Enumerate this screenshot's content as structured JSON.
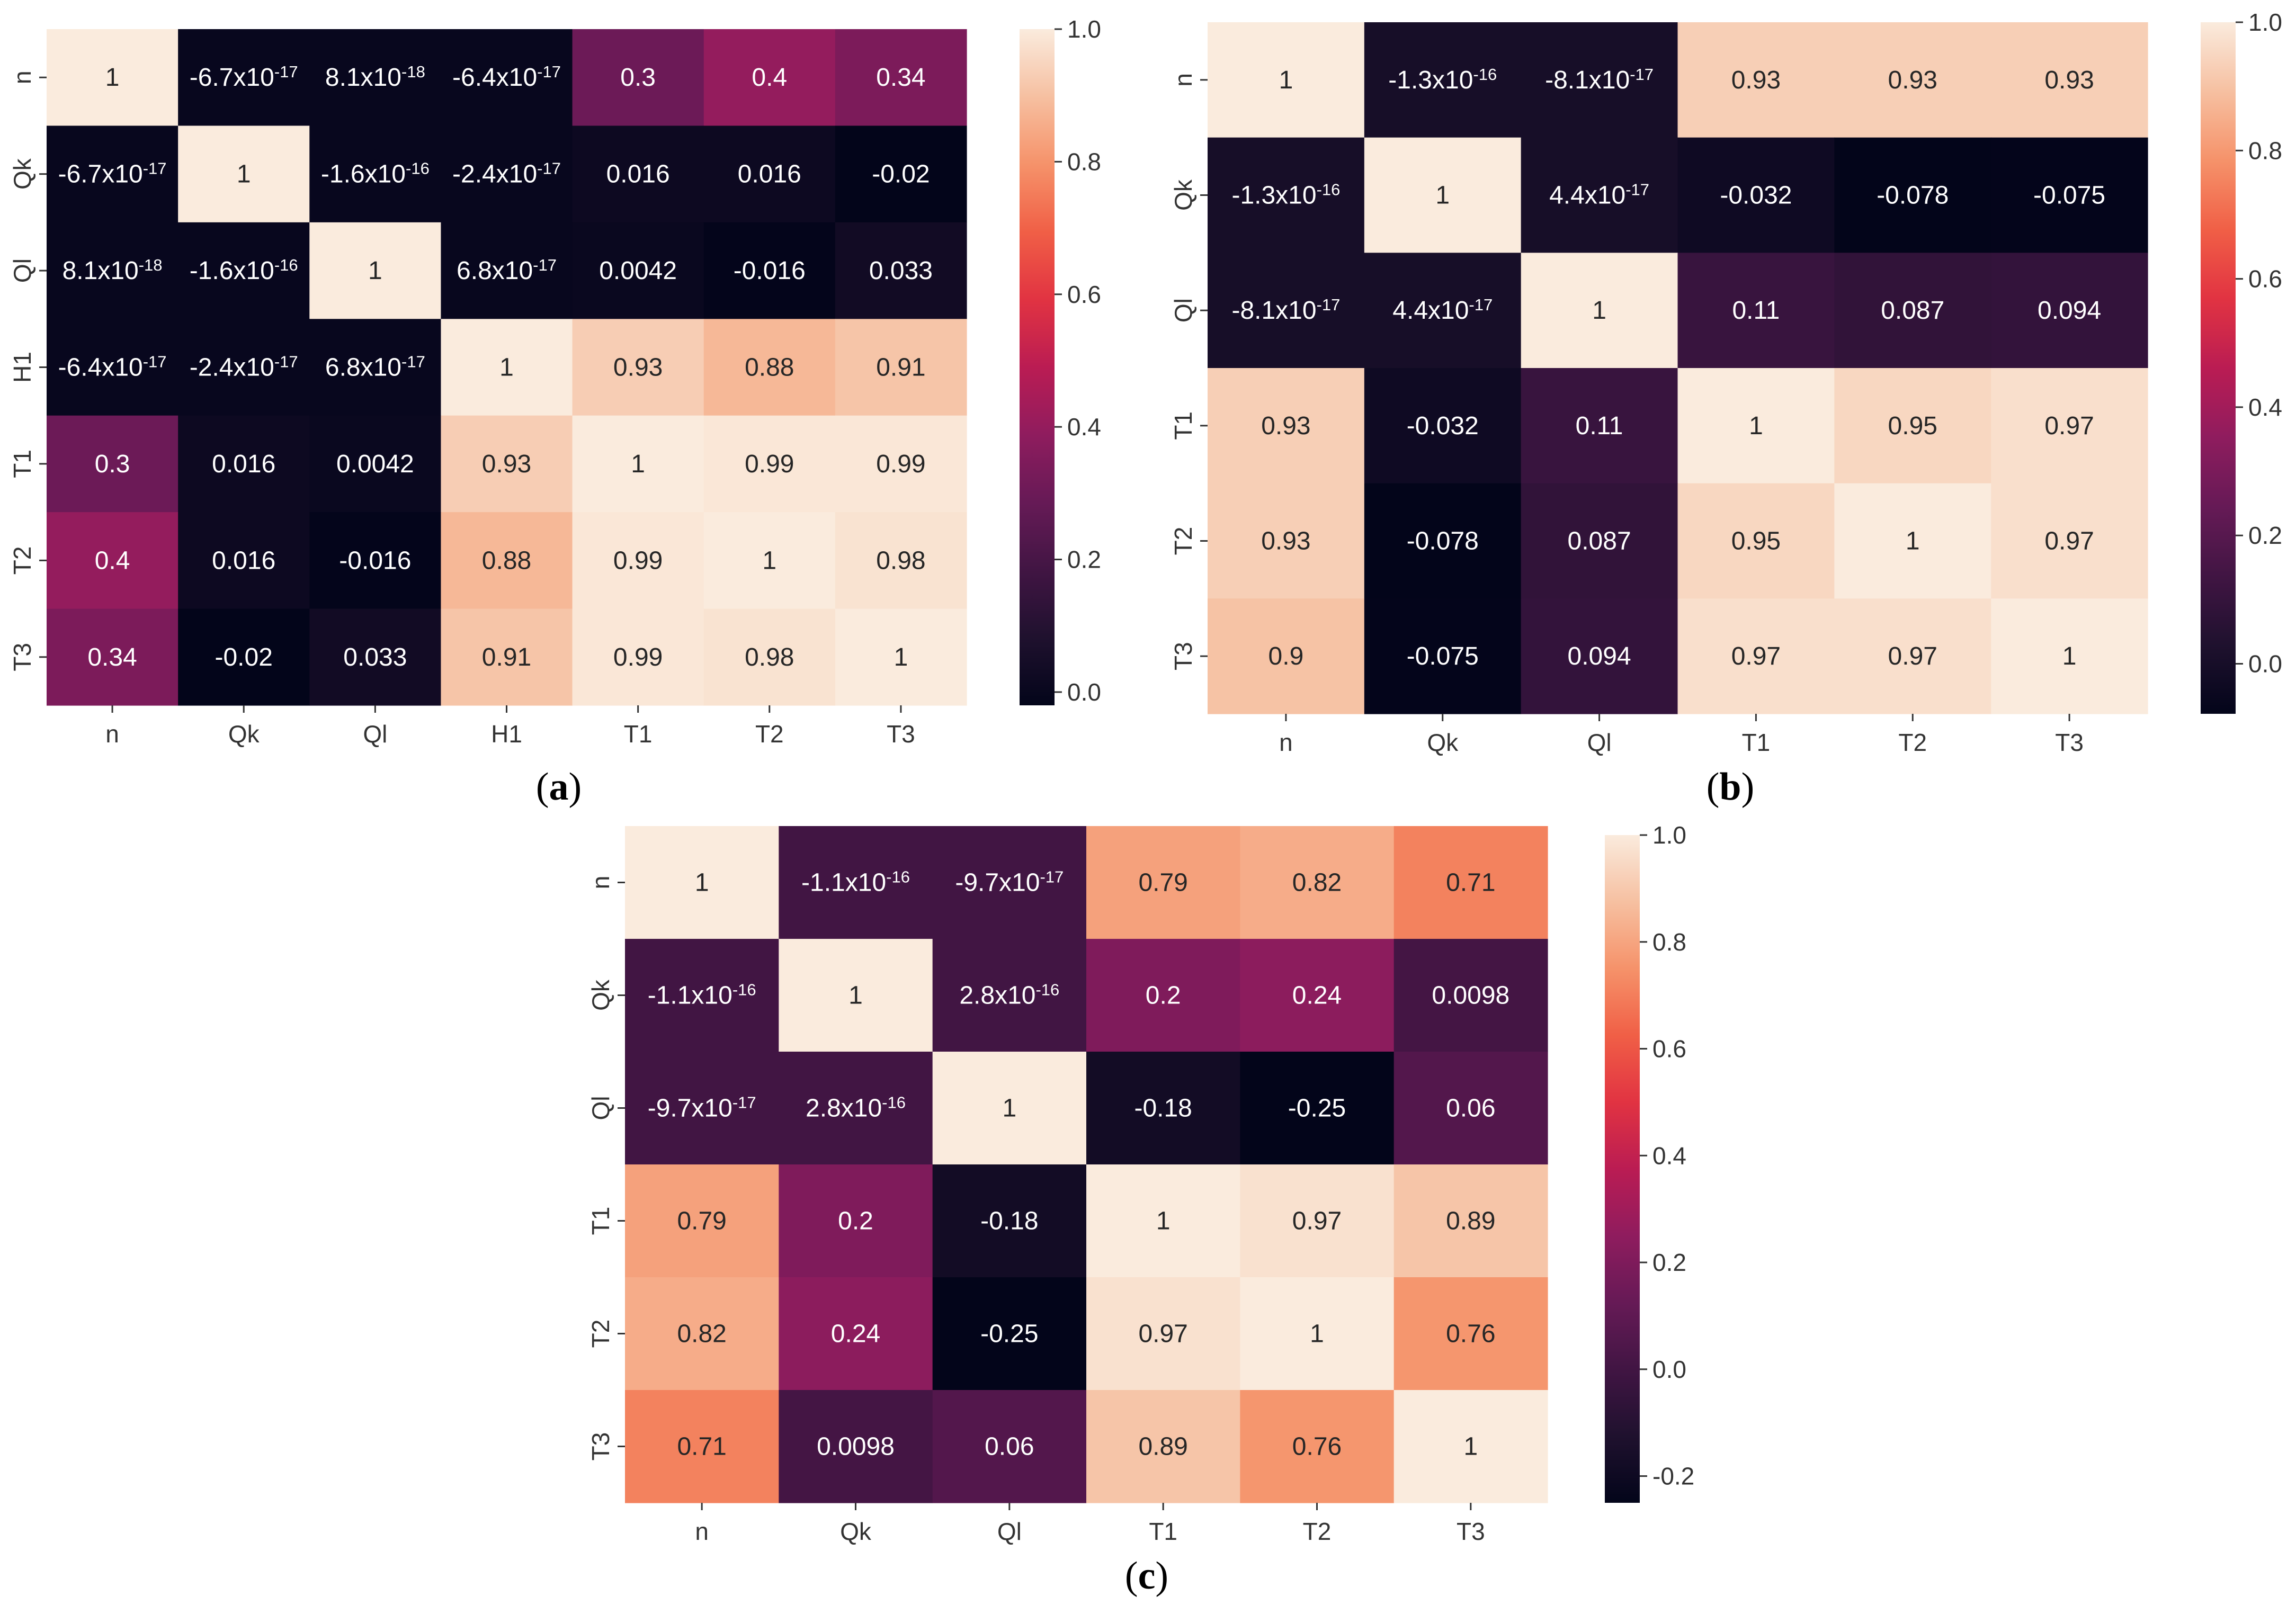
{
  "colormap": "rocket",
  "chart_data": [
    {
      "type": "heatmap",
      "panel_label": "(a)",
      "labels": [
        "n",
        "Qk",
        "Ql",
        "H1",
        "T1",
        "T2",
        "T3"
      ],
      "values": [
        [
          1,
          -6.7e-17,
          8.1e-18,
          -6.4e-17,
          0.3,
          0.4,
          0.34
        ],
        [
          -6.7e-17,
          1,
          -1.6e-16,
          -2.4e-17,
          0.016,
          0.016,
          -0.02
        ],
        [
          8.1e-18,
          -1.6e-16,
          1,
          6.8e-17,
          0.0042,
          -0.016,
          0.033
        ],
        [
          -6.4e-17,
          -2.4e-17,
          6.8e-17,
          1,
          0.93,
          0.88,
          0.91
        ],
        [
          0.3,
          0.016,
          0.0042,
          0.93,
          1,
          0.99,
          0.99
        ],
        [
          0.4,
          0.016,
          -0.016,
          0.88,
          0.99,
          1,
          0.98
        ],
        [
          0.34,
          -0.02,
          0.033,
          0.91,
          0.99,
          0.98,
          1
        ]
      ],
      "annotations": [
        [
          "1",
          "-6.7x10^-17",
          "8.1x10^-18",
          "-6.4x10^-17",
          "0.3",
          "0.4",
          "0.34"
        ],
        [
          "-6.7x10^-17",
          "1",
          "-1.6x10^-16",
          "-2.4x10^-17",
          "0.016",
          "0.016",
          "-0.02"
        ],
        [
          "8.1x10^-18",
          "-1.6x10^-16",
          "1",
          "6.8x10^-17",
          "0.0042",
          "-0.016",
          "0.033"
        ],
        [
          "-6.4x10^-17",
          "-2.4x10^-17",
          "6.8x10^-17",
          "1",
          "0.93",
          "0.88",
          "0.91"
        ],
        [
          "0.3",
          "0.016",
          "0.0042",
          "0.93",
          "1",
          "0.99",
          "0.99"
        ],
        [
          "0.4",
          "0.016",
          "-0.016",
          "0.88",
          "0.99",
          "1",
          "0.98"
        ],
        [
          "0.34",
          "-0.02",
          "0.033",
          "0.91",
          "0.99",
          "0.98",
          "1"
        ]
      ],
      "vmin": -0.02,
      "vmax": 1.0,
      "colorbar_ticks": [
        0.0,
        0.2,
        0.4,
        0.6,
        0.8,
        1.0
      ],
      "colorbar_tick_labels": [
        "0.0",
        "0.2",
        "0.4",
        "0.6",
        "0.8",
        "1.0"
      ]
    },
    {
      "type": "heatmap",
      "panel_label": "(b)",
      "labels": [
        "n",
        "Qk",
        "Ql",
        "T1",
        "T2",
        "T3"
      ],
      "values": [
        [
          1,
          -1.3e-16,
          -8.1e-17,
          0.93,
          0.93,
          0.93
        ],
        [
          -1.3e-16,
          1,
          4.4e-17,
          -0.032,
          -0.078,
          -0.075
        ],
        [
          -8.1e-17,
          4.4e-17,
          1,
          0.11,
          0.087,
          0.094
        ],
        [
          0.93,
          -0.032,
          0.11,
          1,
          0.95,
          0.97
        ],
        [
          0.93,
          -0.078,
          0.087,
          0.95,
          1,
          0.97
        ],
        [
          0.9,
          -0.075,
          0.094,
          0.97,
          0.97,
          1
        ]
      ],
      "annotations": [
        [
          "1",
          "-1.3x10^-16",
          "-8.1x10^-17",
          "0.93",
          "0.93",
          "0.93"
        ],
        [
          "-1.3x10^-16",
          "1",
          "4.4x10^-17",
          "-0.032",
          "-0.078",
          "-0.075"
        ],
        [
          "-8.1x10^-17",
          "4.4x10^-17",
          "1",
          "0.11",
          "0.087",
          "0.094"
        ],
        [
          "0.93",
          "-0.032",
          "0.11",
          "1",
          "0.95",
          "0.97"
        ],
        [
          "0.93",
          "-0.078",
          "0.087",
          "0.95",
          "1",
          "0.97"
        ],
        [
          "0.9",
          "-0.075",
          "0.094",
          "0.97",
          "0.97",
          "1"
        ]
      ],
      "vmin": -0.078,
      "vmax": 1.0,
      "colorbar_ticks": [
        0.0,
        0.2,
        0.4,
        0.6,
        0.8,
        1.0
      ],
      "colorbar_tick_labels": [
        "0.0",
        "0.2",
        "0.4",
        "0.6",
        "0.8",
        "1.0"
      ]
    },
    {
      "type": "heatmap",
      "panel_label": "(c)",
      "labels": [
        "n",
        "Qk",
        "Ql",
        "T1",
        "T2",
        "T3"
      ],
      "values": [
        [
          1,
          -1.1e-16,
          -9.7e-17,
          0.79,
          0.82,
          0.71
        ],
        [
          -1.1e-16,
          1,
          2.8e-16,
          0.2,
          0.24,
          0.0098
        ],
        [
          -9.7e-17,
          2.8e-16,
          1,
          -0.18,
          -0.25,
          0.06
        ],
        [
          0.79,
          0.2,
          -0.18,
          1,
          0.97,
          0.89
        ],
        [
          0.82,
          0.24,
          -0.25,
          0.97,
          1,
          0.76
        ],
        [
          0.71,
          0.0098,
          0.06,
          0.89,
          0.76,
          1
        ]
      ],
      "annotations": [
        [
          "1",
          "-1.1x10^-16",
          "-9.7x10^-17",
          "0.79",
          "0.82",
          "0.71"
        ],
        [
          "-1.1x10^-16",
          "1",
          "2.8x10^-16",
          "0.2",
          "0.24",
          "0.0098"
        ],
        [
          "-9.7x10^-17",
          "2.8x10^-16",
          "1",
          "-0.18",
          "-0.25",
          "0.06"
        ],
        [
          "0.79",
          "0.2",
          "-0.18",
          "1",
          "0.97",
          "0.89"
        ],
        [
          "0.82",
          "0.24",
          "-0.25",
          "0.97",
          "1",
          "0.76"
        ],
        [
          "0.71",
          "0.0098",
          "0.06",
          "0.89",
          "0.76",
          "1"
        ]
      ],
      "vmin": -0.25,
      "vmax": 1.0,
      "colorbar_ticks": [
        -0.2,
        0.0,
        0.2,
        0.4,
        0.6,
        0.8,
        1.0
      ],
      "colorbar_tick_labels": [
        "-0.2",
        "0.0",
        "0.2",
        "0.4",
        "0.6",
        "0.8",
        "1.0"
      ]
    }
  ]
}
